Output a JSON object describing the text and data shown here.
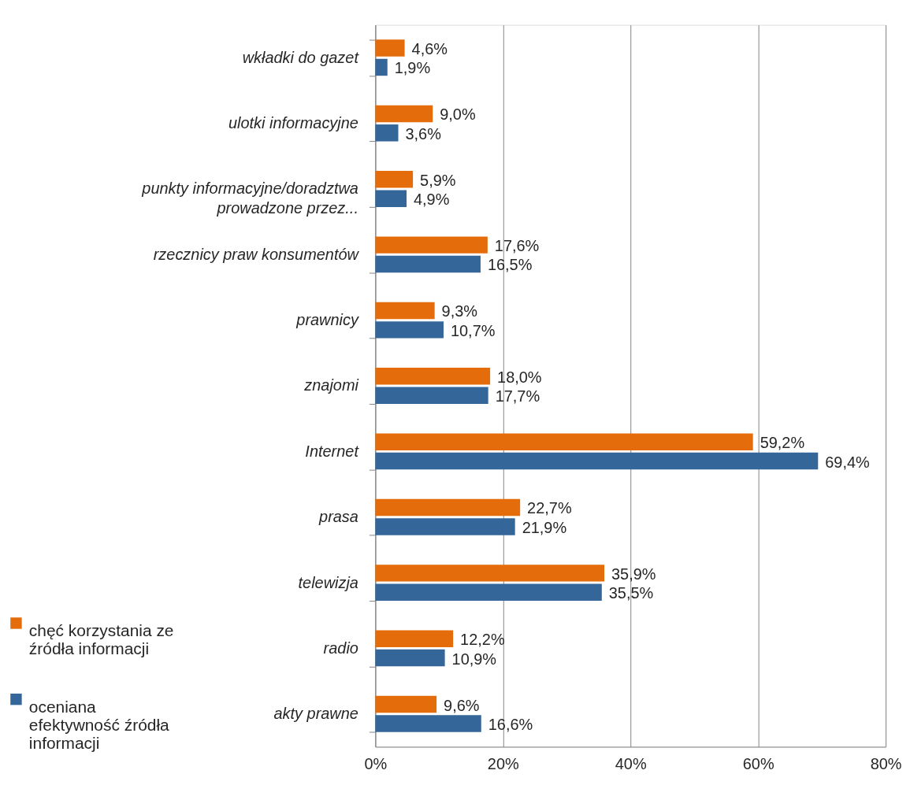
{
  "chart_data": {
    "type": "bar",
    "orientation": "horizontal",
    "categories": [
      "wkładki do gazet",
      "ulotki informacyjne",
      "punkty informacyjne/doradztwa prowadzone przez...",
      "rzecznicy praw konsumentów",
      "prawnicy",
      "znajomi",
      "Internet",
      "prasa",
      "telewizja",
      "radio",
      "akty prawne"
    ],
    "series": [
      {
        "name": "chęć korzystania ze źródła informacji",
        "color": "#e46c0a",
        "values": [
          4.6,
          9.0,
          5.9,
          17.6,
          9.3,
          18.0,
          59.2,
          22.7,
          35.9,
          12.2,
          9.6
        ],
        "value_labels": [
          "4,6%",
          "9,0%",
          "5,9%",
          "17,6%",
          "9,3%",
          "18,0%",
          "59,2%",
          "22,7%",
          "35,9%",
          "12,2%",
          "9,6%"
        ]
      },
      {
        "name": "oceniana efektywność źródła informacji",
        "color": "#346699",
        "values": [
          1.9,
          3.6,
          4.9,
          16.5,
          10.7,
          17.7,
          69.4,
          21.9,
          35.5,
          10.9,
          16.6
        ],
        "value_labels": [
          "1,9%",
          "3,6%",
          "4,9%",
          "16,5%",
          "10,7%",
          "17,7%",
          "69,4%",
          "21,9%",
          "35,5%",
          "10,9%",
          "16,6%"
        ]
      }
    ],
    "xlim": [
      0,
      80
    ],
    "xticks": [
      {
        "value": 0,
        "label": "0%"
      },
      {
        "value": 20,
        "label": "20%"
      },
      {
        "value": 40,
        "label": "40%"
      },
      {
        "value": 60,
        "label": "60%"
      },
      {
        "value": 80,
        "label": "80%"
      }
    ],
    "grid": "x",
    "legend": "bottom left"
  }
}
